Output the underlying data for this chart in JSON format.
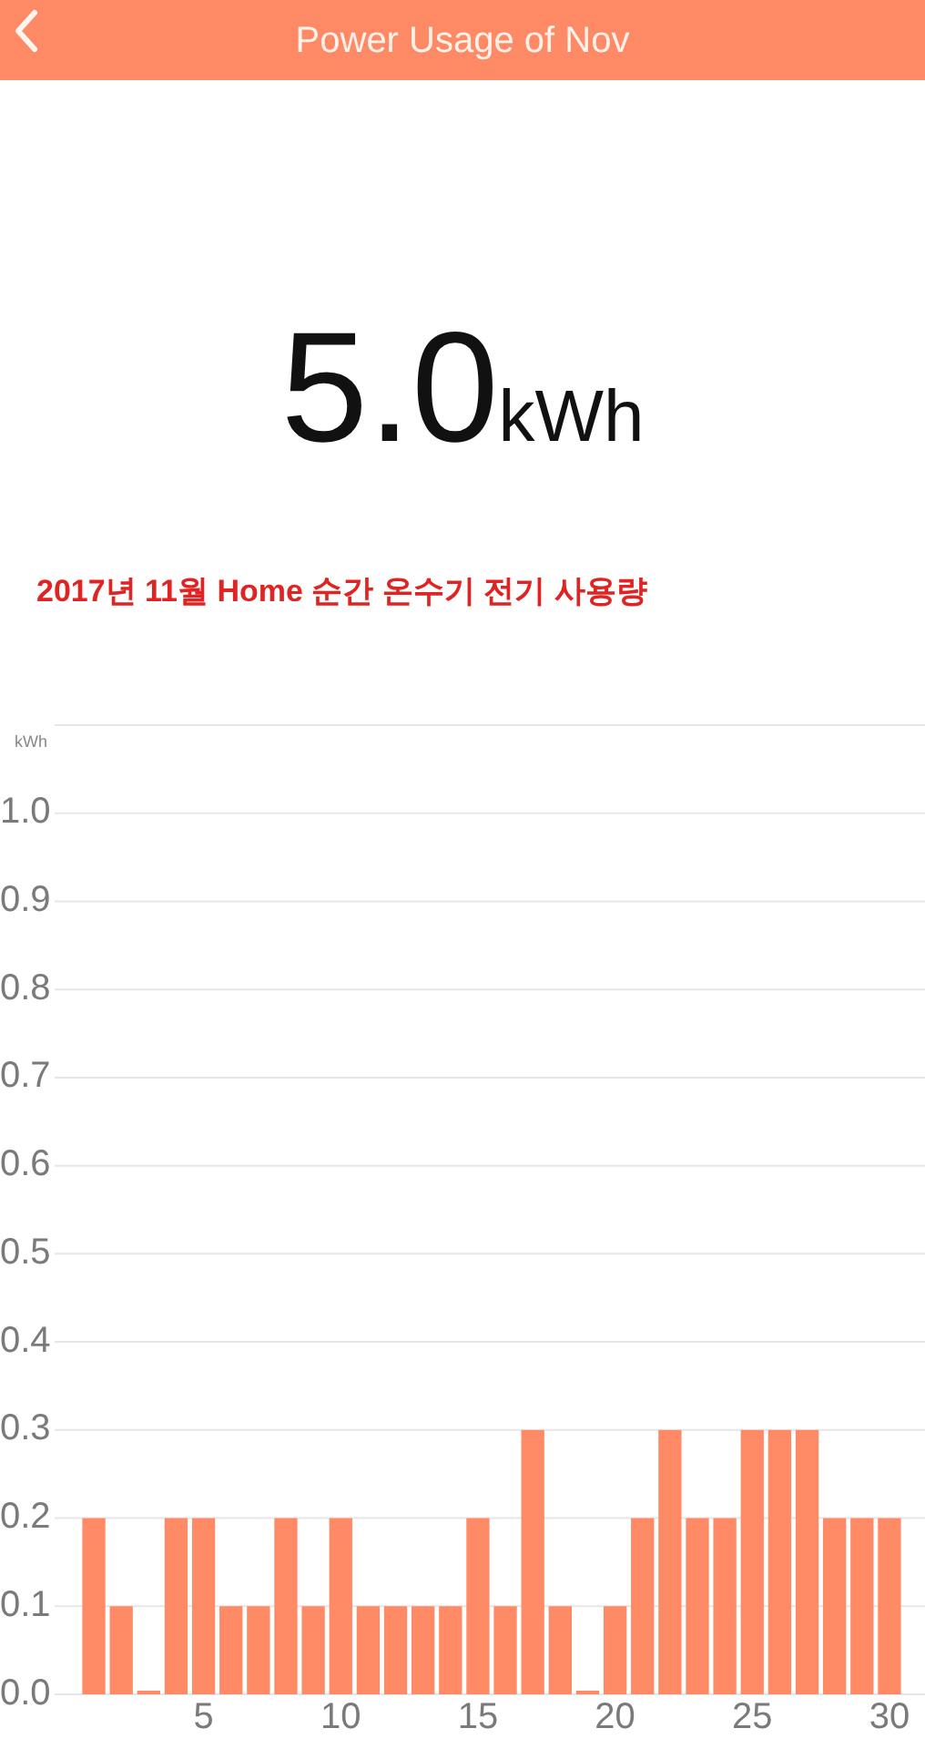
{
  "chart_data": {
    "type": "bar",
    "title": "Power Usage of Nov",
    "subtitle": "2017년 11월 Home 순간 온수기 전기 사용량",
    "ylabel": "kWh",
    "annotations": [
      "5.0kWh"
    ],
    "categories": [
      null,
      null,
      null,
      null,
      "5",
      null,
      null,
      null,
      null,
      "10",
      null,
      null,
      null,
      null,
      "15",
      null,
      null,
      null,
      null,
      "20",
      null,
      null,
      null,
      null,
      "25",
      null,
      null,
      null,
      null,
      "30"
    ],
    "values": [
      0.2,
      0.1,
      0,
      0.2,
      0.2,
      0.1,
      0.1,
      0.2,
      0.1,
      0.2,
      0.1,
      0.1,
      0.1,
      0.1,
      0.2,
      0.1,
      0.3,
      0.1,
      0,
      0.1,
      0.2,
      0.3,
      0.2,
      0.2,
      0.3,
      0.3,
      0.3,
      0.2,
      0.2,
      0.2
    ],
    "color": "#ff8a65",
    "ylim": [
      0,
      1.1
    ],
    "yticks": [
      {
        "value": 0,
        "label": "0.0"
      },
      {
        "value": 0.1,
        "label": "0.1"
      },
      {
        "value": 0.2,
        "label": "0.2"
      },
      {
        "value": 0.3,
        "label": "0.3"
      },
      {
        "value": 0.4,
        "label": "0.4"
      },
      {
        "value": 0.5,
        "label": "0.5"
      },
      {
        "value": 0.6,
        "label": "0.6"
      },
      {
        "value": 0.7,
        "label": "0.7"
      },
      {
        "value": 0.8,
        "label": "0.8"
      },
      {
        "value": 0.9,
        "label": "0.9"
      },
      {
        "value": 1,
        "label": "1.0"
      }
    ],
    "grid": "y"
  }
}
